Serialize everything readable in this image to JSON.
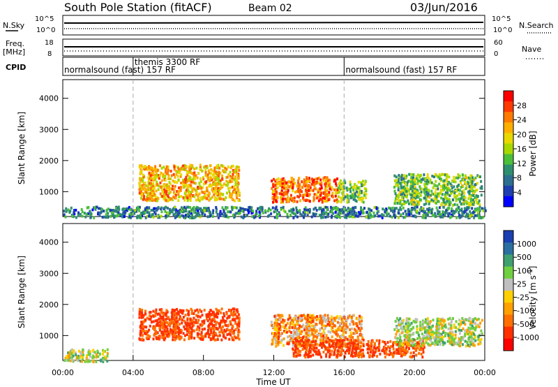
{
  "header": {
    "title": "South Pole Station (fitACF)",
    "beam": "Beam 02",
    "date": "03/Jun/2016"
  },
  "strips": {
    "nsky_label": "N.Sky",
    "nsky_ticks": [
      "10^5",
      "10^0"
    ],
    "nsearch_label": "N.Search",
    "nsearch_ticks": [
      "10^5",
      "10^0"
    ],
    "freq_label": "Freq.",
    "freq_unit": "[MHz]",
    "freq_ticks": [
      "18",
      "8"
    ],
    "nave_label": "Nave",
    "nave_ticks": [
      "60",
      "0"
    ],
    "cpid_label": "CPID",
    "cpid_segments": [
      {
        "label": "normalsound (fast) 157 RF",
        "start_h": 0,
        "end_h": 4
      },
      {
        "label": "themis 3300 RF",
        "start_h": 4,
        "end_h": 16
      },
      {
        "label": "normalsound (fast) 157 RF",
        "start_h": 16,
        "end_h": 24
      }
    ]
  },
  "power_colorbar": {
    "label": "Power [dB]",
    "ticks": [
      "28",
      "24",
      "20",
      "16",
      "12",
      "8",
      "4"
    ],
    "colors": [
      "#ff0000",
      "#ff3a00",
      "#ff7a00",
      "#ffae00",
      "#e8d800",
      "#a8d800",
      "#4bbf3a",
      "#2e8f6e",
      "#2d6f8f",
      "#1f3fb0",
      "#0000ff"
    ]
  },
  "velocity_colorbar": {
    "label": "Velocity [m s",
    "label_sup": "-1",
    "label_end": "]",
    "ticks": [
      "1000",
      "500",
      "100",
      "25",
      "-25",
      "-100",
      "-500",
      "-1000"
    ],
    "colors": [
      "#1a3fb0",
      "#2a6f9f",
      "#3f9f6f",
      "#6fcf3f",
      "#bfbfbf",
      "#ffd000",
      "#ffa000",
      "#ff7000",
      "#ff3000",
      "#ff0000"
    ]
  },
  "chart_data": {
    "type": "heatmap",
    "title": "South Pole Station (fitACF)",
    "xlabel": "Time UT",
    "ylabel": "Slant Range [km]",
    "xlim": [
      0,
      24
    ],
    "ylim": [
      200,
      4600
    ],
    "x_ticks": [
      "00:00",
      "04:00",
      "08:00",
      "12:00",
      "16:00",
      "20:00",
      "00:00"
    ],
    "y_ticks": [
      1000,
      2000,
      3000,
      4000
    ],
    "grid": false,
    "dashed_vertical_markers_h": [
      4,
      16
    ],
    "power_regions": [
      {
        "t0": 4.3,
        "t1": 10.0,
        "r0": 750,
        "r1": 1900,
        "value_db": 22
      },
      {
        "t0": 11.8,
        "t1": 15.6,
        "r0": 700,
        "r1": 1500,
        "value_db": 26
      },
      {
        "t0": 15.6,
        "t1": 17.2,
        "r0": 700,
        "r1": 1400,
        "value_db": 14
      },
      {
        "t0": 18.8,
        "t1": 23.8,
        "r0": 600,
        "r1": 1600,
        "value_db": 14
      },
      {
        "t0": 0.0,
        "t1": 24.0,
        "r0": 200,
        "r1": 550,
        "value_db": 8
      }
    ],
    "velocity_regions": [
      {
        "t0": 4.3,
        "t1": 10.0,
        "r0": 900,
        "r1": 1900,
        "value_ms": -300
      },
      {
        "t0": 11.8,
        "t1": 17.0,
        "r0": 700,
        "r1": 1700,
        "value_ms": -100
      },
      {
        "t0": 13.0,
        "t1": 20.5,
        "r0": 350,
        "r1": 900,
        "value_ms": -300
      },
      {
        "t0": 18.8,
        "t1": 23.8,
        "r0": 700,
        "r1": 1600,
        "value_ms": 100
      },
      {
        "t0": 0.0,
        "t1": 2.5,
        "r0": 200,
        "r1": 600,
        "value_ms": 100
      }
    ]
  }
}
